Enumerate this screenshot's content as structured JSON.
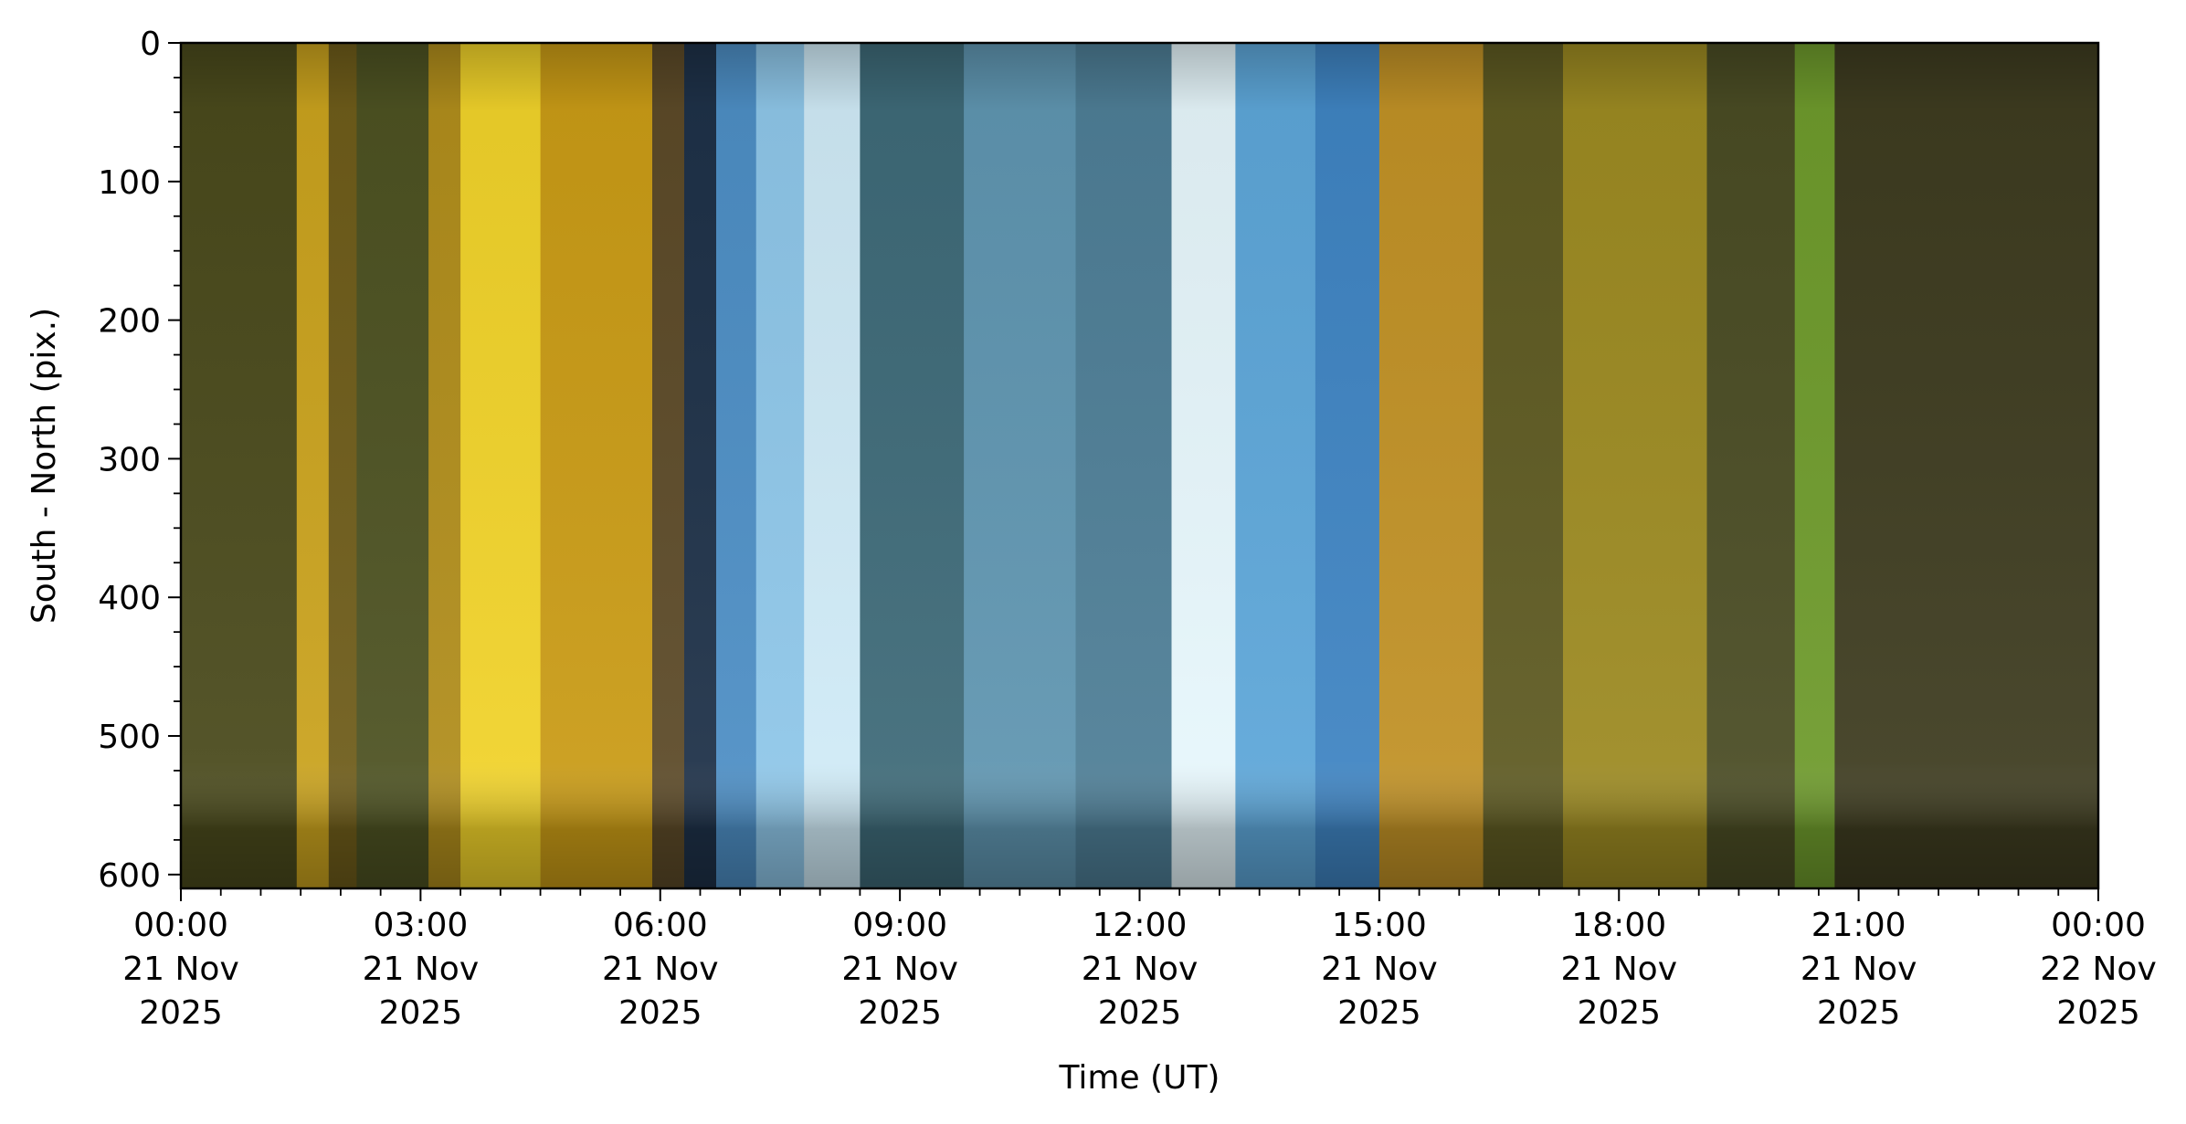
{
  "chart_data": {
    "type": "heatmap",
    "title": "",
    "xlabel": "Time (UT)",
    "ylabel": "South - North (pix.)",
    "x_unit": "hours since 00:00 UT 21 Nov 2025",
    "xlim": [
      0,
      24
    ],
    "ylim": [
      610,
      0
    ],
    "x_ticks": [
      {
        "value": 0,
        "label": [
          "00:00",
          "21 Nov",
          "2025"
        ]
      },
      {
        "value": 3,
        "label": [
          "03:00",
          "21 Nov",
          "2025"
        ]
      },
      {
        "value": 6,
        "label": [
          "06:00",
          "21 Nov",
          "2025"
        ]
      },
      {
        "value": 9,
        "label": [
          "09:00",
          "21 Nov",
          "2025"
        ]
      },
      {
        "value": 12,
        "label": [
          "12:00",
          "21 Nov",
          "2025"
        ]
      },
      {
        "value": 15,
        "label": [
          "15:00",
          "21 Nov",
          "2025"
        ]
      },
      {
        "value": 18,
        "label": [
          "18:00",
          "21 Nov",
          "2025"
        ]
      },
      {
        "value": 21,
        "label": [
          "21:00",
          "21 Nov",
          "2025"
        ]
      },
      {
        "value": 24,
        "label": [
          "00:00",
          "22 Nov",
          "2025"
        ]
      }
    ],
    "y_ticks": [
      {
        "value": 0,
        "label": "0"
      },
      {
        "value": 100,
        "label": "100"
      },
      {
        "value": 200,
        "label": "200"
      },
      {
        "value": 300,
        "label": "300"
      },
      {
        "value": 400,
        "label": "400"
      },
      {
        "value": 500,
        "label": "500"
      },
      {
        "value": 600,
        "label": "600"
      }
    ],
    "x_minor_step": 0.5,
    "y_minor_step": 25,
    "grid": false,
    "legend": "none",
    "bands": [
      {
        "start": 0.0,
        "end": 1.45,
        "color": "#4a4a1c"
      },
      {
        "start": 1.45,
        "end": 1.85,
        "color": "#c9a21e"
      },
      {
        "start": 1.85,
        "end": 2.2,
        "color": "#6e5c1a"
      },
      {
        "start": 2.2,
        "end": 3.1,
        "color": "#4d5222"
      },
      {
        "start": 3.1,
        "end": 3.5,
        "color": "#b08d1c"
      },
      {
        "start": 3.5,
        "end": 4.5,
        "color": "#f0d22a"
      },
      {
        "start": 4.5,
        "end": 5.9,
        "color": "#c99b16"
      },
      {
        "start": 5.9,
        "end": 6.3,
        "color": "#5c4a28"
      },
      {
        "start": 6.3,
        "end": 6.7,
        "color": "#1e3148"
      },
      {
        "start": 6.7,
        "end": 7.2,
        "color": "#4d8ec4"
      },
      {
        "start": 7.2,
        "end": 7.8,
        "color": "#8ec6e8"
      },
      {
        "start": 7.8,
        "end": 8.5,
        "color": "#cfeaf6"
      },
      {
        "start": 8.5,
        "end": 9.8,
        "color": "#3e6a78"
      },
      {
        "start": 9.8,
        "end": 11.2,
        "color": "#5f95b0"
      },
      {
        "start": 11.2,
        "end": 12.4,
        "color": "#4e7e96"
      },
      {
        "start": 12.4,
        "end": 13.2,
        "color": "#e6f6fb"
      },
      {
        "start": 13.2,
        "end": 14.2,
        "color": "#5da6d8"
      },
      {
        "start": 14.2,
        "end": 15.0,
        "color": "#3f84c2"
      },
      {
        "start": 15.0,
        "end": 16.3,
        "color": "#c09126"
      },
      {
        "start": 16.3,
        "end": 17.3,
        "color": "#5e5a22"
      },
      {
        "start": 17.3,
        "end": 19.1,
        "color": "#9c8a22"
      },
      {
        "start": 19.1,
        "end": 20.2,
        "color": "#4a4c24"
      },
      {
        "start": 20.2,
        "end": 20.7,
        "color": "#6e9a2c"
      },
      {
        "start": 20.7,
        "end": 24.0,
        "color": "#3e3c20"
      }
    ],
    "colors": {
      "frame": "#000000",
      "background": "#ffffff"
    }
  }
}
